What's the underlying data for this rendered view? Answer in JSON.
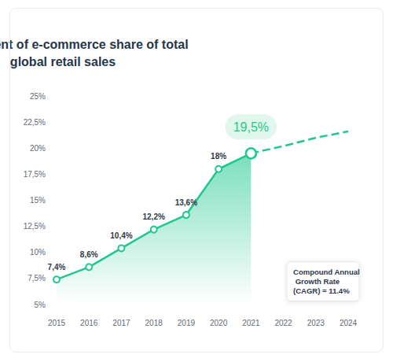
{
  "chart_data": {
    "type": "line",
    "title": "Development of e-commerce share of total global retail sales",
    "categories": [
      "2015",
      "2016",
      "2017",
      "2018",
      "2019",
      "2020",
      "2021",
      "2022",
      "2023",
      "2024"
    ],
    "series": [
      {
        "color": "#1fc98e",
        "marker": "circle",
        "line_style": "solid",
        "data_labels": true,
        "values": [
          7.4,
          8.6,
          10.4,
          12.2,
          13.6,
          18,
          19.5,
          null,
          null,
          null
        ],
        "value_labels": [
          "7,4%",
          "8,6%",
          "10,4%",
          "12,2%",
          "13,6%",
          "18%",
          "19,5%",
          null,
          null,
          null
        ]
      },
      {
        "color": "#1fc98e",
        "line_style": "dashed",
        "data_labels": false,
        "values": [
          null,
          null,
          null,
          null,
          null,
          null,
          19.5,
          20.2,
          21.0,
          21.6
        ]
      }
    ],
    "ylim": [
      5,
      25
    ],
    "yticks": [
      {
        "value": 5,
        "label": "5%"
      },
      {
        "value": 7.5,
        "label": "7,5%"
      },
      {
        "value": 10,
        "label": "10%"
      },
      {
        "value": 12.5,
        "label": "12,5%"
      },
      {
        "value": 15,
        "label": "15%"
      },
      {
        "value": 17.5,
        "label": "17,5%"
      },
      {
        "value": 20,
        "label": "20%"
      },
      {
        "value": 22.5,
        "label": "22,5%"
      },
      {
        "value": 25,
        "label": "25%"
      }
    ],
    "grid": false,
    "annotations": [
      {
        "text": "Compound Annual Growth Rate (CAGR) = 11.4%"
      }
    ]
  }
}
